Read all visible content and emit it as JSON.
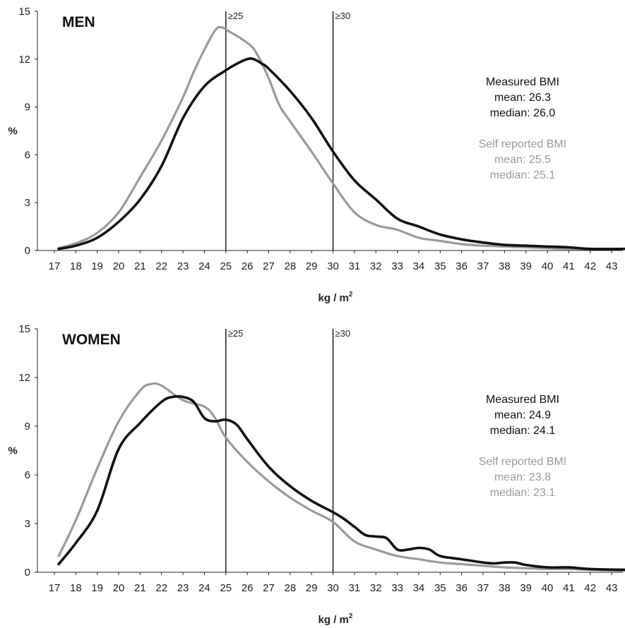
{
  "chart_data": [
    {
      "type": "line",
      "title": "MEN",
      "xlabel": "kg / m2",
      "xlabel_main": "kg / m",
      "xlabel_sup": "2",
      "ylabel": "%",
      "ylim": [
        0,
        15
      ],
      "xlim": [
        17,
        43.7
      ],
      "x_ticks": [
        17,
        18,
        19,
        20,
        21,
        22,
        23,
        24,
        25,
        26,
        27,
        28,
        29,
        30,
        31,
        32,
        33,
        34,
        35,
        36,
        37,
        38,
        39,
        40,
        41,
        42,
        43
      ],
      "y_ticks": [
        0,
        3,
        6,
        9,
        12,
        15
      ],
      "thresholds": [
        {
          "x": 25,
          "label": "≥25"
        },
        {
          "x": 30,
          "label": "≥30"
        }
      ],
      "annotations": {
        "measured": {
          "title": "Measured BMI",
          "mean": "mean: 26.3",
          "median": "median: 26.0",
          "color": "#111111"
        },
        "self": {
          "title": "Self reported BMI",
          "mean": "mean: 25.5",
          "median": "median: 25.1",
          "color": "#9a9a9a"
        }
      },
      "series": [
        {
          "name": "Measured BMI",
          "color": "#111111",
          "x": [
            17.2,
            18,
            19,
            20,
            21,
            22,
            23,
            24,
            25,
            25.5,
            26,
            26.3,
            26.7,
            27,
            28,
            29,
            30,
            31,
            32,
            33,
            34,
            35,
            36,
            37,
            38,
            39,
            40,
            41,
            42,
            43.7
          ],
          "y": [
            0.1,
            0.3,
            0.8,
            1.8,
            3.2,
            5.3,
            8.3,
            10.3,
            11.3,
            11.7,
            12.0,
            12.0,
            11.7,
            11.4,
            10.0,
            8.3,
            6.2,
            4.4,
            3.2,
            2.0,
            1.5,
            1.0,
            0.7,
            0.5,
            0.35,
            0.3,
            0.25,
            0.2,
            0.1,
            0.1
          ]
        },
        {
          "name": "Self reported BMI",
          "color": "#9a9a9a",
          "x": [
            17.2,
            18,
            19,
            20,
            21,
            22,
            23,
            23.5,
            24,
            24.5,
            24.8,
            25.2,
            25.7,
            26.2,
            26.5,
            27,
            27.5,
            28,
            29,
            30,
            31,
            32,
            33,
            34,
            35,
            36,
            37,
            38,
            39,
            40,
            41,
            42,
            43.7
          ],
          "y": [
            0.15,
            0.45,
            1.1,
            2.4,
            4.6,
            6.9,
            9.6,
            11.2,
            12.6,
            13.8,
            14.0,
            13.7,
            13.3,
            12.8,
            12.2,
            10.8,
            9.1,
            8.1,
            6.2,
            4.2,
            2.4,
            1.6,
            1.3,
            0.8,
            0.6,
            0.4,
            0.3,
            0.25,
            0.2,
            0.15,
            0.1,
            0.1,
            0.1
          ]
        }
      ]
    },
    {
      "type": "line",
      "title": "WOMEN",
      "xlabel": "kg / m2",
      "xlabel_main": "kg / m",
      "xlabel_sup": "2",
      "ylabel": "%",
      "ylim": [
        0,
        15
      ],
      "xlim": [
        17,
        43.7
      ],
      "x_ticks": [
        17,
        18,
        19,
        20,
        21,
        22,
        23,
        24,
        25,
        26,
        27,
        28,
        29,
        30,
        31,
        32,
        33,
        34,
        35,
        36,
        37,
        38,
        39,
        40,
        41,
        42,
        43
      ],
      "y_ticks": [
        0,
        3,
        6,
        9,
        12,
        15
      ],
      "thresholds": [
        {
          "x": 25,
          "label": "≥25"
        },
        {
          "x": 30,
          "label": "≥30"
        }
      ],
      "annotations": {
        "measured": {
          "title": "Measured BMI",
          "mean": "mean: 24.9",
          "median": "median: 24.1",
          "color": "#111111"
        },
        "self": {
          "title": "Self reported BMI",
          "mean": "mean: 23.8",
          "median": "median: 23.1",
          "color": "#9a9a9a"
        }
      },
      "series": [
        {
          "name": "Measured BMI",
          "color": "#111111",
          "x": [
            17.2,
            18,
            19,
            20,
            21,
            22,
            22.5,
            23,
            23.5,
            24,
            24.5,
            25,
            25.5,
            26,
            27,
            28,
            29,
            30,
            30.5,
            31,
            31.5,
            32,
            32.5,
            33,
            33.5,
            34,
            34.5,
            35,
            36,
            37,
            37.5,
            38,
            38.5,
            39,
            40,
            41,
            42,
            43.7
          ],
          "y": [
            0.5,
            1.8,
            3.8,
            7.6,
            9.2,
            10.5,
            10.8,
            10.8,
            10.5,
            9.5,
            9.3,
            9.4,
            9.1,
            8.2,
            6.5,
            5.3,
            4.4,
            3.7,
            3.3,
            2.8,
            2.3,
            2.2,
            2.1,
            1.4,
            1.4,
            1.5,
            1.4,
            1.0,
            0.8,
            0.6,
            0.55,
            0.6,
            0.6,
            0.45,
            0.3,
            0.3,
            0.2,
            0.15
          ]
        },
        {
          "name": "Self reported BMI",
          "color": "#9a9a9a",
          "x": [
            17.2,
            18,
            19,
            20,
            21,
            21.5,
            22,
            23,
            24,
            24.5,
            25,
            26,
            27,
            28,
            29,
            30,
            31,
            32,
            33,
            34,
            35,
            36,
            37,
            38,
            39,
            40,
            41,
            42,
            43.7
          ],
          "y": [
            1.0,
            3.2,
            6.4,
            9.3,
            11.2,
            11.6,
            11.5,
            10.6,
            10.2,
            9.5,
            8.3,
            6.8,
            5.6,
            4.6,
            3.8,
            3.1,
            1.9,
            1.4,
            1.0,
            0.8,
            0.6,
            0.5,
            0.4,
            0.3,
            0.25,
            0.2,
            0.2,
            0.15,
            0.1
          ]
        }
      ]
    }
  ]
}
